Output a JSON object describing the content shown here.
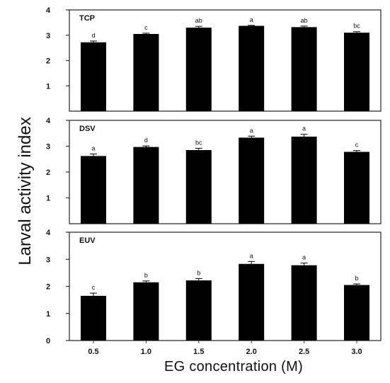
{
  "figure": {
    "ylabel": "Larval activity index",
    "xlabel": "EG concentration (M)"
  },
  "chart_data": [
    {
      "type": "bar",
      "title": "TCP",
      "categories": [
        "0.5",
        "1.0",
        "1.5",
        "2.0",
        "2.5",
        "3.0"
      ],
      "values": [
        2.72,
        3.05,
        3.3,
        3.37,
        3.32,
        3.1
      ],
      "errors": [
        0.05,
        0.03,
        0.05,
        0.02,
        0.04,
        0.04
      ],
      "labels": [
        "d",
        "c",
        "ab",
        "a",
        "ab",
        "bc"
      ],
      "yticks": [
        1,
        2,
        3,
        4
      ],
      "ylim": [
        0,
        4
      ],
      "show_xticks": false
    },
    {
      "type": "bar",
      "title": "DSV",
      "categories": [
        "0.5",
        "1.0",
        "1.5",
        "2.0",
        "2.5",
        "3.0"
      ],
      "values": [
        2.62,
        2.97,
        2.85,
        3.33,
        3.37,
        2.78
      ],
      "errors": [
        0.08,
        0.04,
        0.07,
        0.06,
        0.09,
        0.05
      ],
      "labels": [
        "a",
        "d",
        "bc",
        "a",
        "a",
        "c"
      ],
      "yticks": [
        1,
        2,
        3,
        4
      ],
      "ylim": [
        0,
        4
      ],
      "show_xticks": false
    },
    {
      "type": "bar",
      "title": "EUV",
      "categories": [
        "0.5",
        "1.0",
        "1.5",
        "2.0",
        "2.5",
        "3.0"
      ],
      "values": [
        1.65,
        2.15,
        2.22,
        2.83,
        2.78,
        2.05
      ],
      "errors": [
        0.1,
        0.05,
        0.07,
        0.09,
        0.08,
        0.04
      ],
      "labels": [
        "c",
        "b",
        "b",
        "a",
        "a",
        "b"
      ],
      "yticks": [
        0,
        1,
        2,
        3,
        4
      ],
      "ylim": [
        0,
        4
      ],
      "show_xticks": true
    }
  ]
}
